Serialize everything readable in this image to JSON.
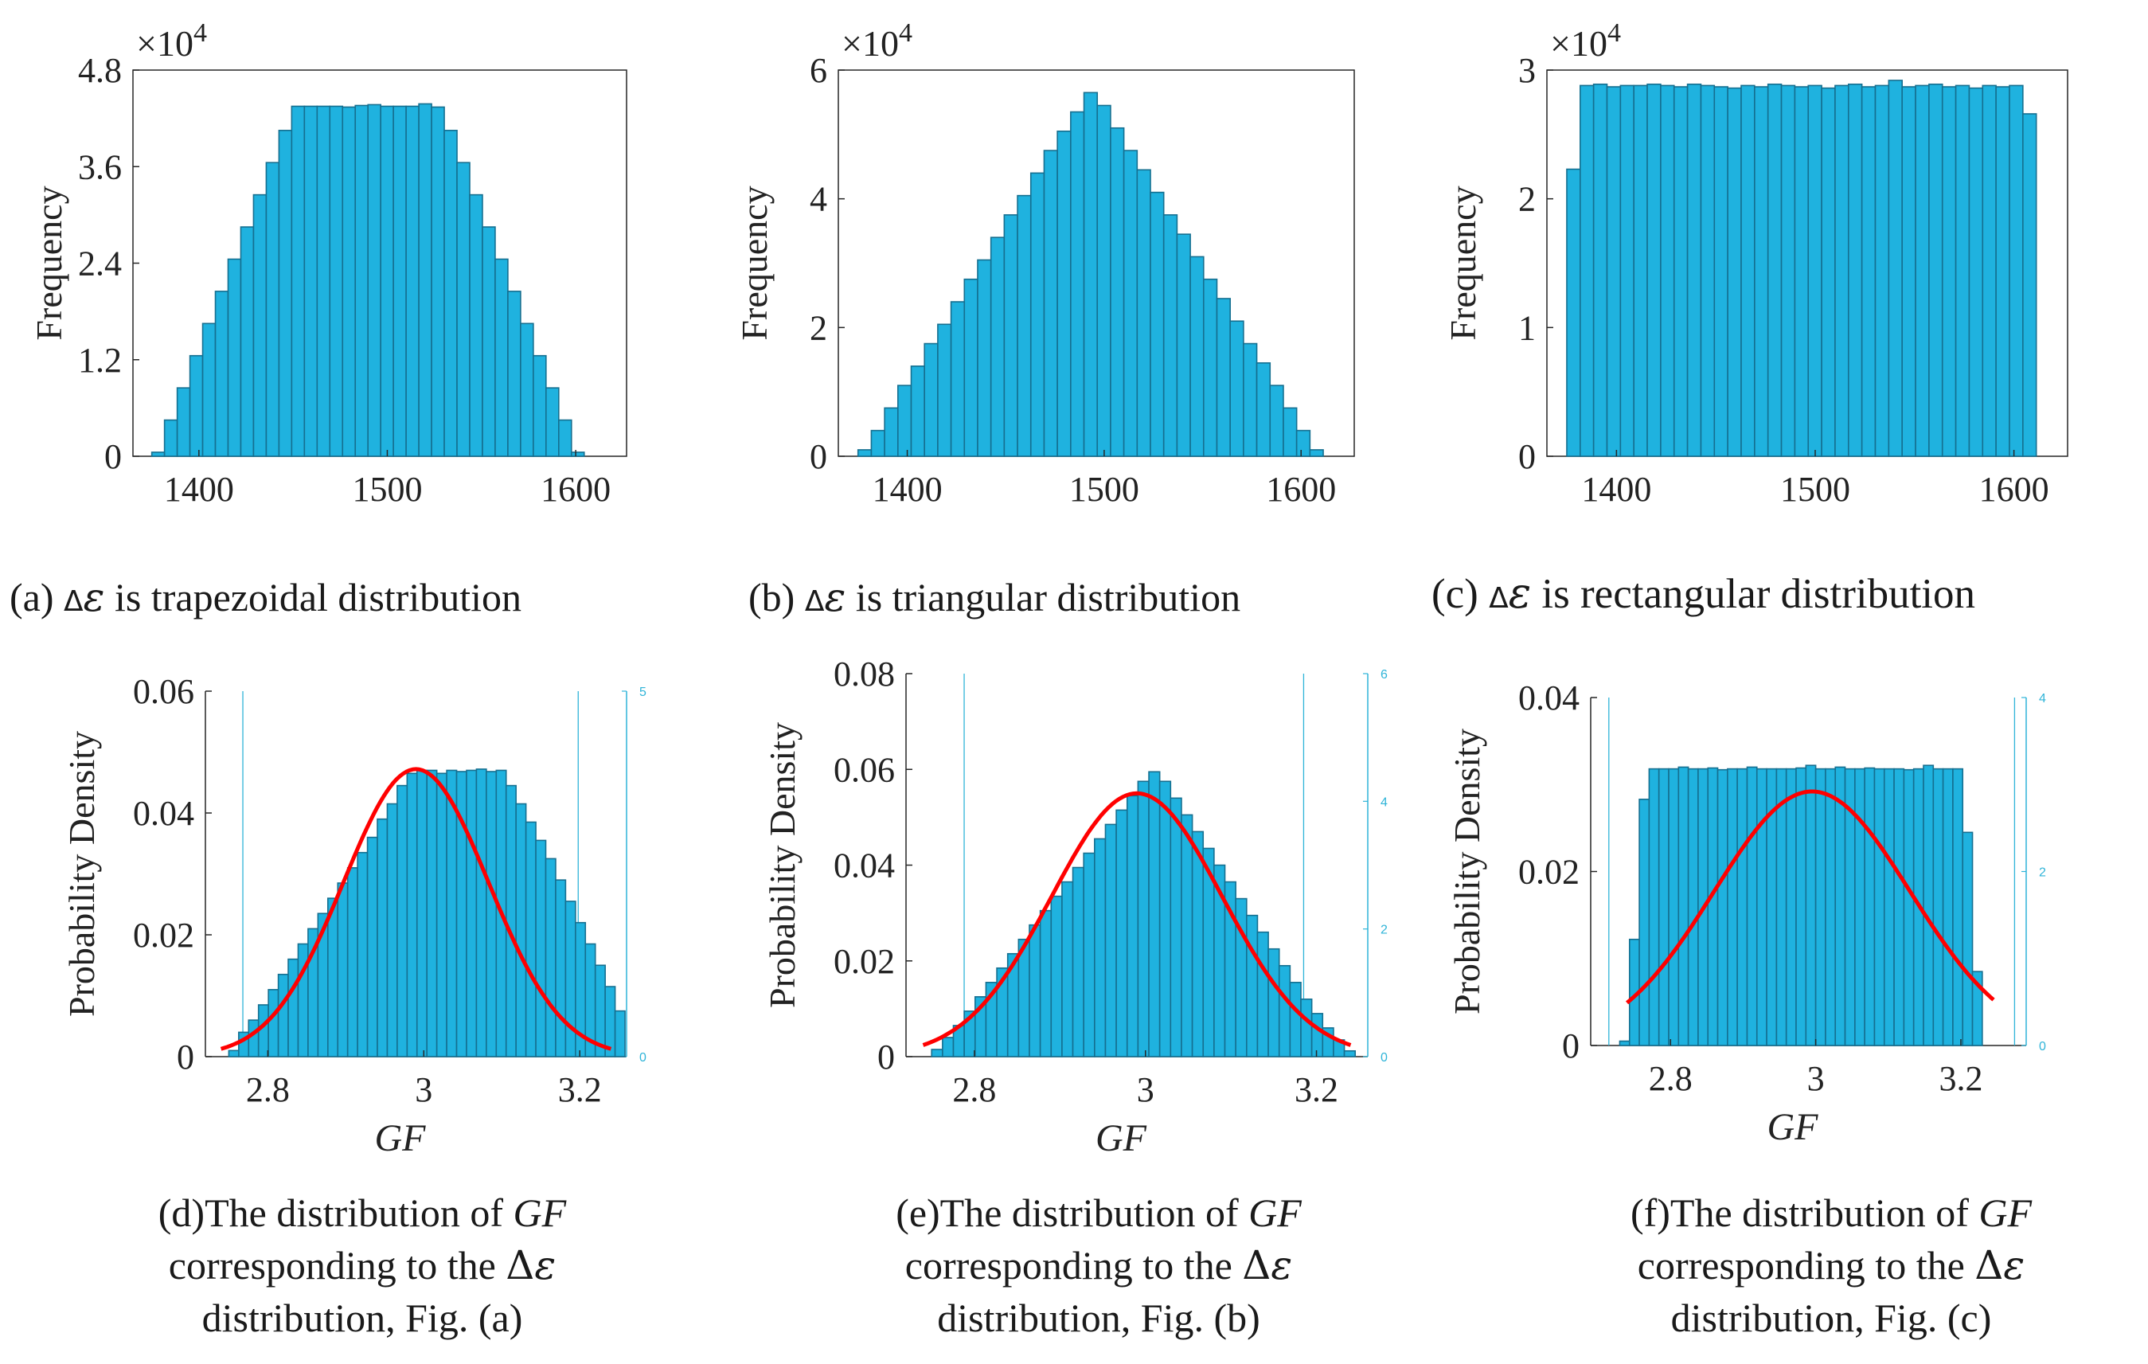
{
  "colors": {
    "bar": "#1fb2df",
    "bar_edge": "#156f90",
    "fit": "#ff0000",
    "axis": "#262626",
    "text": "#1a1a1a",
    "right_axis": "#2fb4d8"
  },
  "captions": {
    "a": {
      "prefix": "(a) ",
      "delta": "Δ",
      "eps": "ε",
      "suffix": " is trapezoidal distribution"
    },
    "b": {
      "prefix": "(b) ",
      "delta": "Δ",
      "eps": "ε",
      "suffix": " is triangular distribution"
    },
    "c": {
      "prefix": "(c) ",
      "delta": "Δ",
      "eps": "ε",
      "suffix": " is rectangular distribution"
    },
    "d": {
      "line1a": "(d)The distribution of ",
      "line1b": "GF",
      "line2a": "corresponding to the ",
      "line2b": "Δ",
      "line2c": "ε",
      "line3": "distribution, Fig. (a)"
    },
    "e": {
      "line1a": "(e)The distribution of ",
      "line1b": "GF",
      "line2a": "corresponding to the ",
      "line2b": "Δ",
      "line2c": "ε",
      "line3": "distribution, Fig. (b)"
    },
    "f": {
      "line1a": "(f)The distribution of ",
      "line1b": "GF",
      "line2a": "corresponding to the ",
      "line2b": "Δ",
      "line2c": "ε",
      "line3": "distribution, Fig. (c)"
    }
  },
  "chart_data": [
    {
      "id": "a",
      "type": "bar",
      "title": "",
      "xlabel": "",
      "ylabel": "Frequency",
      "scale_label": "×10",
      "scale_exp": "4",
      "xlim": [
        1365,
        1627
      ],
      "ylim": [
        0,
        4.8
      ],
      "xticks": [
        1400,
        1500,
        1600
      ],
      "xtick_labels": [
        "1400",
        "1500",
        "1600"
      ],
      "yticks": [
        0,
        1.2,
        2.4,
        3.6,
        4.8
      ],
      "ytick_labels": [
        "0",
        "1.2",
        "2.4",
        "3.6",
        "4.8"
      ],
      "bin_start": 1375,
      "bin_width": 6.75,
      "values": [
        0.05,
        0.45,
        0.85,
        1.25,
        1.65,
        2.05,
        2.45,
        2.85,
        3.25,
        3.65,
        4.05,
        4.35,
        4.35,
        4.35,
        4.35,
        4.34,
        4.36,
        4.37,
        4.35,
        4.35,
        4.35,
        4.38,
        4.34,
        4.05,
        3.65,
        3.25,
        2.85,
        2.45,
        2.05,
        1.65,
        1.25,
        0.85,
        0.45,
        0.05
      ]
    },
    {
      "id": "b",
      "type": "bar",
      "title": "",
      "xlabel": "",
      "ylabel": "Frequency",
      "scale_label": "×10",
      "scale_exp": "4",
      "xlim": [
        1365,
        1627
      ],
      "ylim": [
        0,
        6
      ],
      "xticks": [
        1400,
        1500,
        1600
      ],
      "xtick_labels": [
        "1400",
        "1500",
        "1600"
      ],
      "yticks": [
        0,
        2,
        4,
        6
      ],
      "ytick_labels": [
        "0",
        "2",
        "4",
        "6"
      ],
      "bin_start": 1375,
      "bin_width": 6.75,
      "values": [
        0.1,
        0.4,
        0.75,
        1.1,
        1.4,
        1.75,
        2.05,
        2.4,
        2.75,
        3.05,
        3.4,
        3.75,
        4.05,
        4.4,
        4.75,
        5.05,
        5.35,
        5.65,
        5.45,
        5.1,
        4.75,
        4.45,
        4.1,
        3.75,
        3.45,
        3.1,
        2.75,
        2.45,
        2.1,
        1.75,
        1.45,
        1.1,
        0.75,
        0.4,
        0.1
      ]
    },
    {
      "id": "c",
      "type": "bar",
      "title": "",
      "xlabel": "",
      "ylabel": "Frequency",
      "scale_label": "×10",
      "scale_exp": "4",
      "xlim": [
        1365,
        1627
      ],
      "ylim": [
        0,
        3
      ],
      "xticks": [
        1400,
        1500,
        1600
      ],
      "xtick_labels": [
        "1400",
        "1500",
        "1600"
      ],
      "yticks": [
        0,
        1,
        2,
        3
      ],
      "ytick_labels": [
        "0",
        "1",
        "2",
        "3"
      ],
      "bin_start": 1375,
      "bin_width": 6.75,
      "values": [
        2.23,
        2.88,
        2.89,
        2.87,
        2.88,
        2.88,
        2.89,
        2.88,
        2.87,
        2.89,
        2.88,
        2.87,
        2.86,
        2.88,
        2.87,
        2.89,
        2.88,
        2.87,
        2.88,
        2.86,
        2.88,
        2.89,
        2.87,
        2.88,
        2.92,
        2.87,
        2.88,
        2.89,
        2.87,
        2.88,
        2.86,
        2.88,
        2.87,
        2.88,
        2.66
      ]
    },
    {
      "id": "d",
      "type": "bar",
      "title": "",
      "xlabel": "GF",
      "ylabel": "Probability Density",
      "xlim": [
        2.72,
        3.26
      ],
      "ylim": [
        0,
        0.06
      ],
      "xticks": [
        2.8,
        3.0,
        3.2
      ],
      "xtick_labels": [
        "2.8",
        "3",
        "3.2"
      ],
      "yticks": [
        0,
        0.02,
        0.04,
        0.06
      ],
      "ytick_labels": [
        "0",
        "0.02",
        "0.04",
        "0.06"
      ],
      "right_ylim": [
        0,
        5
      ],
      "right_yticks": [
        0,
        5
      ],
      "right_ytick_labels": [
        "0",
        "5"
      ],
      "right_axis_x_lines": [
        2.768,
        3.198
      ],
      "bin_start": 2.75,
      "bin_width": 0.0127,
      "values": [
        0.001,
        0.004,
        0.006,
        0.0085,
        0.011,
        0.0135,
        0.016,
        0.0185,
        0.021,
        0.0235,
        0.026,
        0.0285,
        0.031,
        0.0335,
        0.036,
        0.039,
        0.0415,
        0.0445,
        0.0465,
        0.047,
        0.047,
        0.0465,
        0.047,
        0.0468,
        0.047,
        0.0472,
        0.0468,
        0.047,
        0.0445,
        0.0415,
        0.0385,
        0.0355,
        0.0325,
        0.029,
        0.0255,
        0.022,
        0.0185,
        0.015,
        0.0115,
        0.0075
      ],
      "fit": {
        "type": "normal",
        "mean": 2.99,
        "std": 0.093,
        "peak": 0.0472,
        "x_range": [
          2.74,
          3.24
        ]
      }
    },
    {
      "id": "e",
      "type": "bar",
      "title": "",
      "xlabel": "GF",
      "ylabel": "Probability Density",
      "xlim": [
        2.72,
        3.26
      ],
      "ylim": [
        0,
        0.08
      ],
      "xticks": [
        2.8,
        3.0,
        3.2
      ],
      "xtick_labels": [
        "2.8",
        "3",
        "3.2"
      ],
      "yticks": [
        0,
        0.02,
        0.04,
        0.06,
        0.08
      ],
      "ytick_labels": [
        "0",
        "0.02",
        "0.04",
        "0.06",
        "0.08"
      ],
      "right_ylim": [
        0,
        6
      ],
      "right_yticks": [
        0,
        2,
        4,
        6
      ],
      "right_ytick_labels": [
        "0",
        "2",
        "4",
        "6"
      ],
      "right_axis_x_lines": [
        2.788,
        3.185
      ],
      "bin_start": 2.75,
      "bin_width": 0.0127,
      "values": [
        0.0015,
        0.004,
        0.0065,
        0.0095,
        0.0125,
        0.0155,
        0.0185,
        0.0215,
        0.0245,
        0.0275,
        0.0305,
        0.0335,
        0.0365,
        0.0395,
        0.0425,
        0.0455,
        0.0485,
        0.0515,
        0.0545,
        0.0575,
        0.0595,
        0.0575,
        0.054,
        0.0505,
        0.047,
        0.0435,
        0.04,
        0.0365,
        0.033,
        0.0295,
        0.026,
        0.0225,
        0.019,
        0.0155,
        0.012,
        0.009,
        0.006,
        0.0035,
        0.0012
      ],
      "fit": {
        "type": "normal",
        "mean": 2.99,
        "std": 0.1,
        "peak": 0.055,
        "x_range": [
          2.74,
          3.24
        ]
      }
    },
    {
      "id": "f",
      "type": "bar",
      "title": "",
      "xlabel": "GF",
      "ylabel": "Probability Density",
      "xlim": [
        2.69,
        3.29
      ],
      "ylim": [
        0,
        0.04
      ],
      "xticks": [
        2.8,
        3.0,
        3.2
      ],
      "xtick_labels": [
        "2.8",
        "3",
        "3.2"
      ],
      "yticks": [
        0,
        0.02,
        0.04
      ],
      "ytick_labels": [
        "0",
        "0.02",
        "0.04"
      ],
      "right_ylim": [
        0,
        4
      ],
      "right_yticks": [
        0,
        2,
        4
      ],
      "right_ytick_labels": [
        "0",
        "2",
        "4"
      ],
      "right_axis_x_lines": [
        2.715,
        3.274
      ],
      "bin_start": 2.73,
      "bin_width": 0.0135,
      "values": [
        0.0005,
        0.0122,
        0.0283,
        0.0318,
        0.0318,
        0.0318,
        0.032,
        0.0318,
        0.0318,
        0.0319,
        0.0317,
        0.0318,
        0.0318,
        0.032,
        0.0318,
        0.0318,
        0.0318,
        0.0318,
        0.0319,
        0.0322,
        0.0318,
        0.0318,
        0.032,
        0.0318,
        0.0318,
        0.0319,
        0.0318,
        0.0318,
        0.0318,
        0.0317,
        0.0318,
        0.0322,
        0.0318,
        0.0318,
        0.0318,
        0.0245,
        0.0085
      ],
      "fit": {
        "type": "normal",
        "mean": 2.995,
        "std": 0.135,
        "peak": 0.0292,
        "x_range": [
          2.74,
          3.245
        ]
      }
    }
  ]
}
